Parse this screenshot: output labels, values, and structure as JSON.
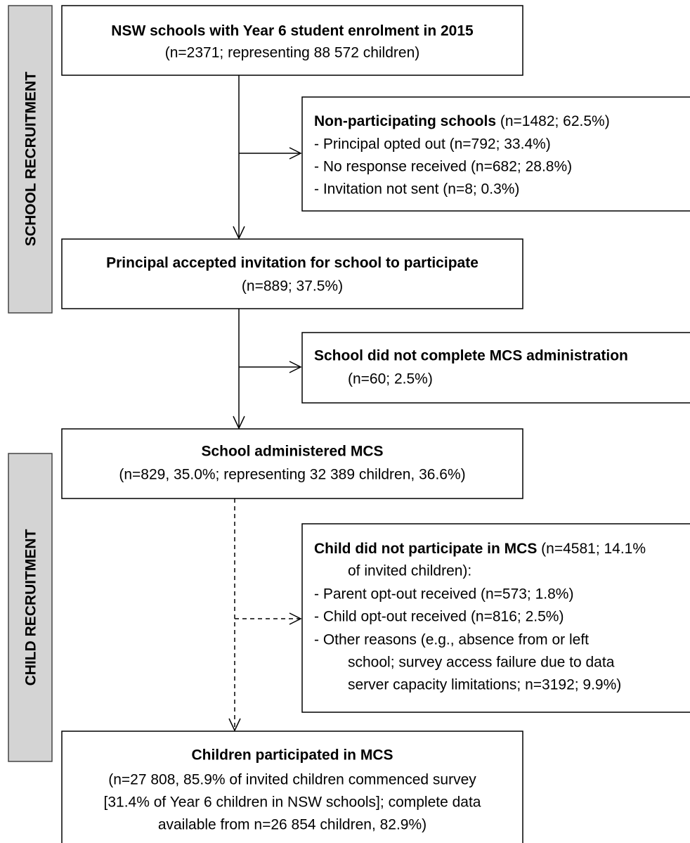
{
  "side_labels": [
    "SCHOOL RECRUITMENT",
    "CHILD RECRUITMENT"
  ],
  "boxes": [
    {
      "title": "NSW schools with Year 6 student enrolment in 2015",
      "lines": [
        "(n=2371; representing 88 572 children)"
      ]
    },
    {
      "title": "Non-participating schools",
      "title_note": "(n=1482; 62.5%)",
      "lines": [
        "- Principal opted out (n=792; 33.4%)",
        "- No response received (n=682; 28.8%)",
        "- Invitation not sent (n=8; 0.3%)"
      ]
    },
    {
      "title": "Principal accepted invitation for school to participate",
      "lines": [
        "(n=889; 37.5%)"
      ]
    },
    {
      "title": "School did not complete MCS administration",
      "lines": [
        "(n=60; 2.5%)"
      ]
    },
    {
      "title": "School administered MCS",
      "lines": [
        "(n=829, 35.0%; representing 32 389 children, 36.6%)"
      ]
    },
    {
      "title": "Child did not participate in MCS",
      "title_note": "(n=4581; 14.1%",
      "lines": [
        "of invited children):",
        "- Parent opt-out received (n=573; 1.8%)",
        "- Child opt-out received (n=816; 2.5%)",
        "- Other reasons (e.g., absence from or left",
        "school; survey access failure due to data",
        "server capacity limitations; n=3192; 9.9%)"
      ]
    },
    {
      "title": "Children participated in MCS",
      "lines": [
        "(n=27 808, 85.9% of invited children commenced survey",
        "[31.4% of Year 6 children in NSW schools]; complete data",
        "available from n=26 854 children, 82.9%)"
      ]
    }
  ]
}
